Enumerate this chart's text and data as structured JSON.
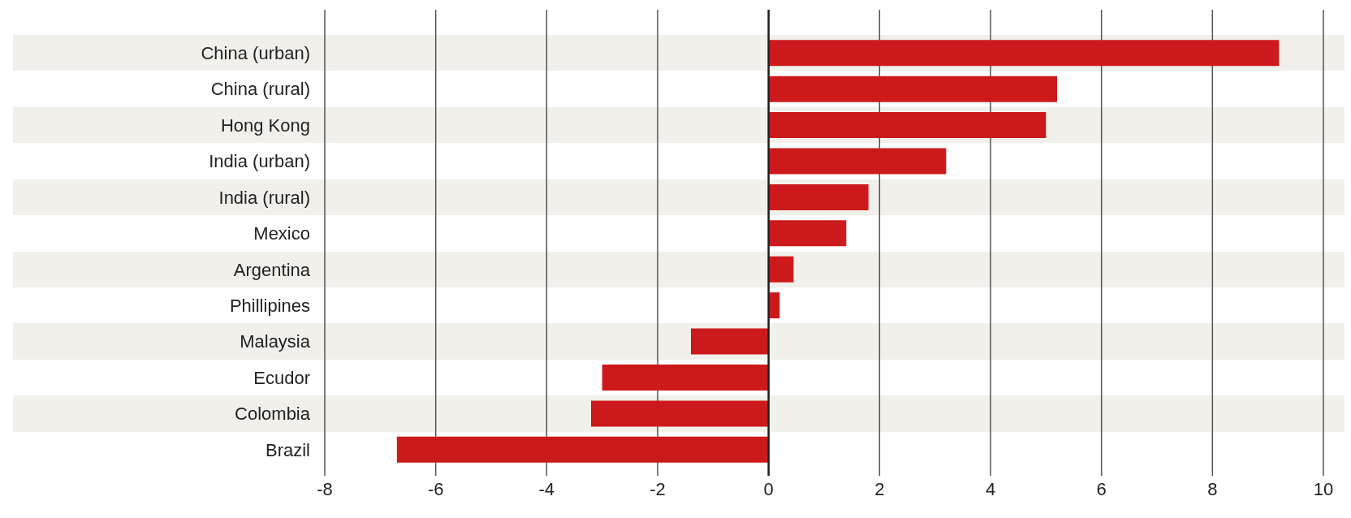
{
  "chart_data": {
    "type": "bar",
    "orientation": "horizontal",
    "categories": [
      "China (urban)",
      "China (rural)",
      "Hong Kong",
      "India (urban)",
      "India (rural)",
      "Mexico",
      "Argentina",
      "Phillipines",
      "Malaysia",
      "Ecudor",
      "Colombia",
      "Brazil"
    ],
    "values": [
      9.2,
      5.2,
      5.0,
      3.2,
      1.8,
      1.4,
      0.45,
      0.2,
      -1.4,
      -3.0,
      -3.2,
      -6.7
    ],
    "color": "#cc1a1c",
    "xlim": [
      -8,
      10
    ],
    "xticks": [
      -8,
      -6,
      -4,
      -2,
      0,
      2,
      4,
      6,
      8,
      10
    ],
    "grid": "x",
    "ref_lines": [
      {
        "axis": "x",
        "value": 0,
        "color": "#222222"
      }
    ]
  }
}
